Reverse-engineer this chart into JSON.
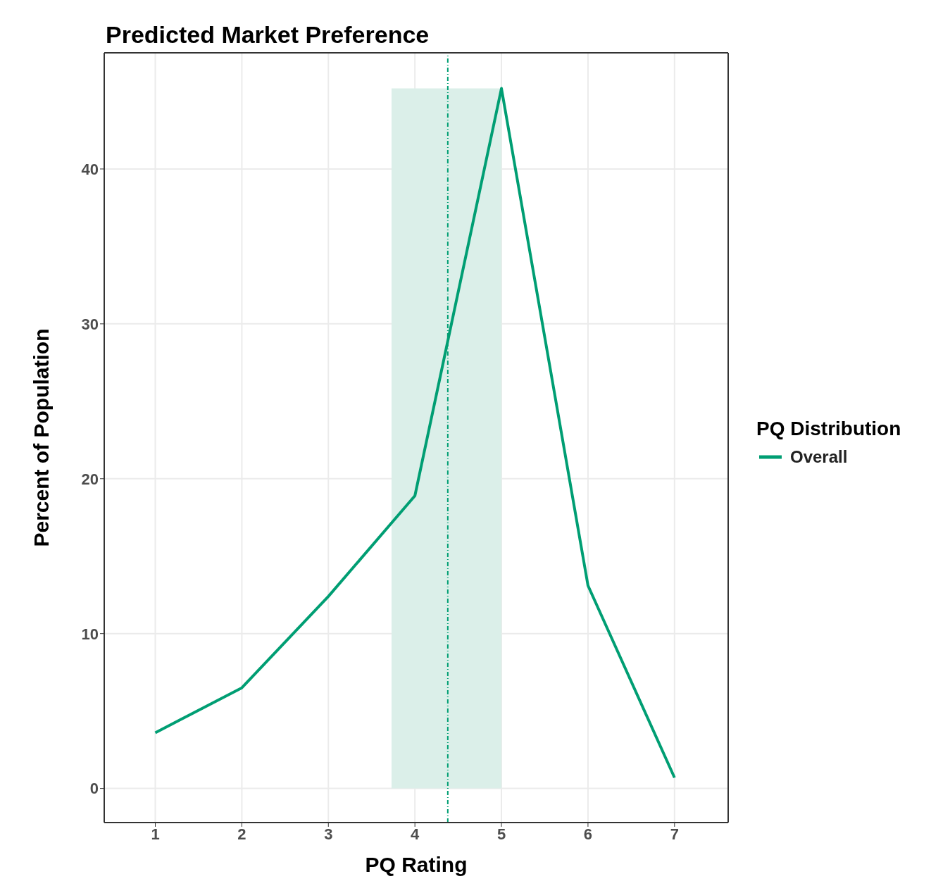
{
  "chart_data": {
    "type": "line",
    "title": "Predicted Market Preference",
    "xlabel": "PQ Rating",
    "ylabel": "Percent of Population",
    "legend_title": "PQ Distribution",
    "x": [
      1,
      2,
      3,
      4,
      5,
      6,
      7
    ],
    "series": [
      {
        "name": "Overall",
        "color": "#009e73",
        "values": [
          3.6,
          6.5,
          12.4,
          18.9,
          45.2,
          13.1,
          0.7
        ]
      }
    ],
    "xlim": [
      0.41,
      7.62
    ],
    "xticks": [
      1,
      2,
      3,
      4,
      5,
      6,
      7
    ],
    "ylim": [
      -2.2,
      47.5
    ],
    "yticks": [
      0,
      10,
      20,
      30,
      40
    ],
    "bands": [
      {
        "axis": "x",
        "from": 3.73,
        "to": 5.0,
        "color": "#dbefe9"
      }
    ],
    "ref_lines": [
      {
        "axis": "x",
        "value": 4.38,
        "color": "#009e73",
        "line_style": "dashdot"
      }
    ],
    "grid": true,
    "legend": "right",
    "marker": "none",
    "line_style": "solid"
  }
}
